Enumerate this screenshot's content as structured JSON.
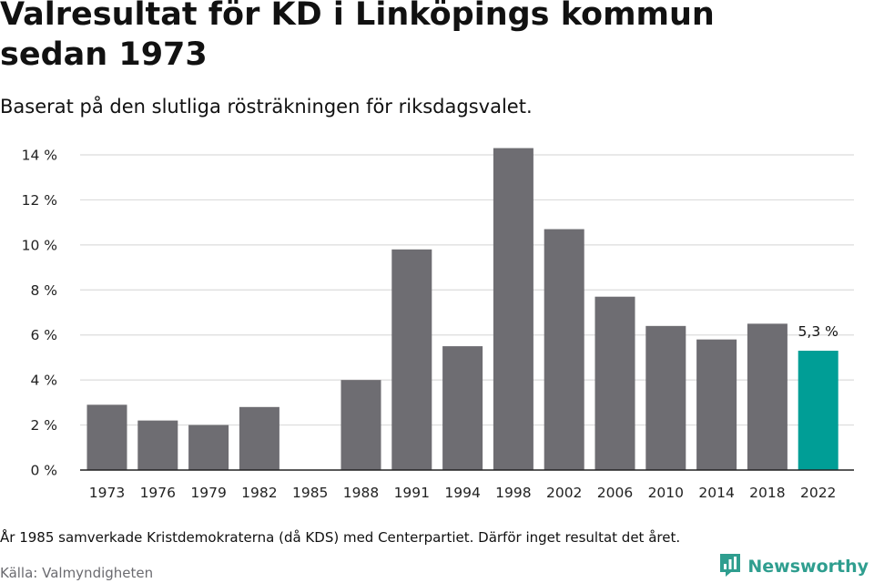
{
  "title": "Valresultat för KD i Linköpings kommun sedan 1973",
  "subtitle": "Baserat på den slutliga rösträkningen för riksdagsvalet.",
  "note": "År 1985 samverkade Kristdemokraterna (då KDS) med Centerpartiet. Därför inget resultat det året.",
  "source": "Källa: Valmyndigheten",
  "brand": {
    "name": "Newsworthy",
    "icon": "newsworthy-logo-icon",
    "color": "#2f9e8f"
  },
  "colors": {
    "bar": "#6e6d72",
    "highlight": "#009e96",
    "grid": "#dcdcdc",
    "axis": "#222222"
  },
  "chart_data": {
    "type": "bar",
    "title": "Valresultat för KD i Linköpings kommun sedan 1973",
    "xlabel": "",
    "ylabel": "",
    "ylim": [
      0,
      14
    ],
    "yticks": [
      0,
      2,
      4,
      6,
      8,
      10,
      12,
      14
    ],
    "ytick_labels": [
      "0 %",
      "2 %",
      "4 %",
      "6 %",
      "8 %",
      "10 %",
      "12 %",
      "14 %"
    ],
    "grid": true,
    "categories": [
      "1973",
      "1976",
      "1979",
      "1982",
      "1985",
      "1988",
      "1991",
      "1994",
      "1998",
      "2002",
      "2006",
      "2010",
      "2014",
      "2018",
      "2022"
    ],
    "values": [
      2.9,
      2.2,
      2.0,
      2.8,
      null,
      4.0,
      9.8,
      5.5,
      14.3,
      10.7,
      7.7,
      6.4,
      5.8,
      6.5,
      5.3
    ],
    "highlight_index": 14,
    "annotations": [
      {
        "category": "2022",
        "text": "5,3 %"
      }
    ]
  }
}
